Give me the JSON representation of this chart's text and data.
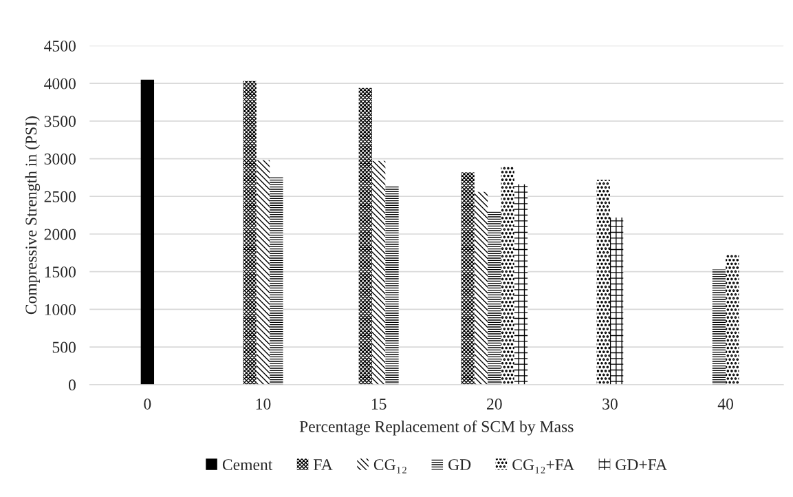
{
  "chart_data": {
    "type": "bar",
    "xlabel": "Percentage Replacement of SCM by Mass",
    "ylabel": "Compressive Strength in (PSI)",
    "categories": [
      "0",
      "10",
      "15",
      "20",
      "30",
      "40"
    ],
    "series": [
      {
        "name": "Cement",
        "color": "#000000",
        "values": [
          4050,
          null,
          null,
          null,
          null,
          null
        ]
      },
      {
        "name": "FA",
        "color": "#000000",
        "values": [
          null,
          4030,
          3940,
          2820,
          null,
          null
        ]
      },
      {
        "name": "CG₁₂",
        "color": "#000000",
        "values": [
          null,
          2980,
          2970,
          2560,
          null,
          null
        ]
      },
      {
        "name": "GD",
        "color": "#000000",
        "values": [
          null,
          2760,
          2630,
          2300,
          null,
          1530
        ]
      },
      {
        "name": "CG₁₂+FA",
        "color": "#000000",
        "values": [
          null,
          null,
          null,
          2900,
          2720,
          1720
        ]
      },
      {
        "name": "GD+FA",
        "color": "#000000",
        "values": [
          null,
          null,
          null,
          2660,
          2220,
          null
        ]
      }
    ],
    "ylim": [
      0,
      4500
    ],
    "yticks": [
      0,
      500,
      1000,
      1500,
      2000,
      2500,
      3000,
      3500,
      4000,
      4500
    ],
    "grid": "y",
    "legend": "bottom"
  }
}
